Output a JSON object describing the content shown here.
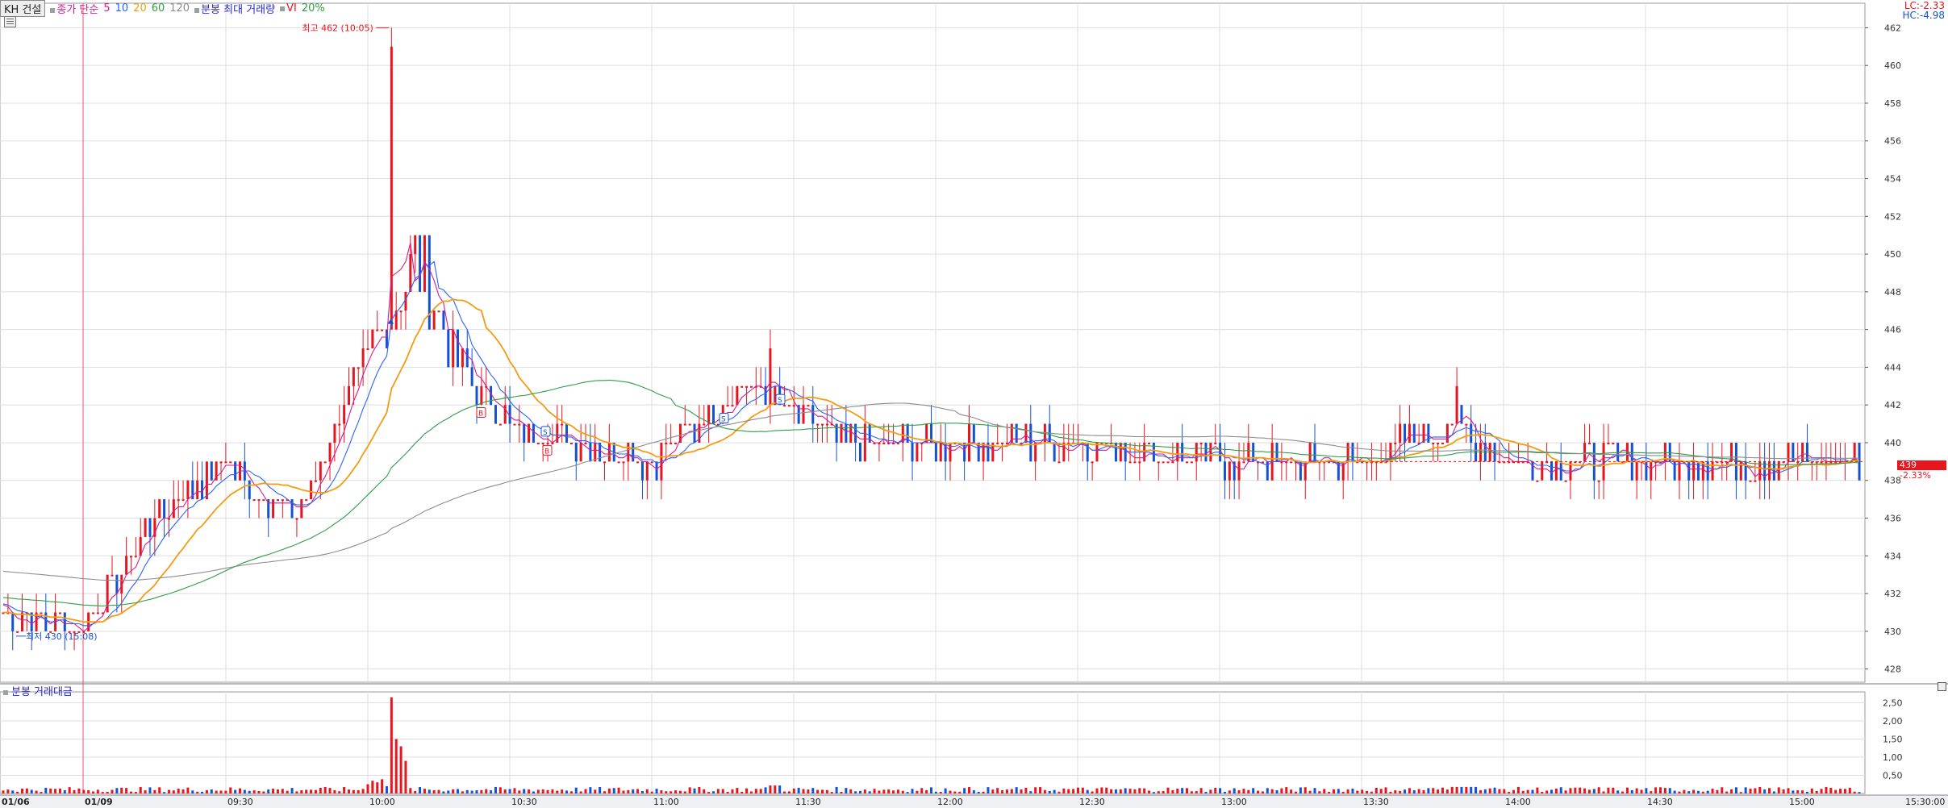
{
  "header": {
    "stock_name": "KH 건설",
    "ma_label": "종가 단순",
    "ma_periods": [
      {
        "period": "5",
        "color": "#d81b8c"
      },
      {
        "period": "10",
        "color": "#2962ff"
      },
      {
        "period": "20",
        "color": "#f39c12"
      },
      {
        "period": "60",
        "color": "#2e9e45"
      },
      {
        "period": "120",
        "color": "#8c8c8c"
      }
    ],
    "minute_max_volume": "분봉 최대 거래량",
    "vi_label": "VI",
    "vi_value": "20%"
  },
  "right_header": {
    "lc": "LC:-2.33",
    "hc": "HC:-4.98"
  },
  "colors": {
    "up": "#e8141e",
    "down": "#1451d6",
    "ma5": "#d81b8c",
    "ma10": "#2962ff",
    "ma20": "#f39c12",
    "ma60": "#2e9e45",
    "ma120": "#8c8c8c",
    "grid": "#dedede"
  },
  "price_panel": {
    "current_price": "439",
    "current_pct": "-2.33%",
    "high_annotation": "최고 462 (10:05)",
    "low_annotation": "최저 430 (15:08)"
  },
  "volume_panel": {
    "title": "분봉 거래대금"
  },
  "chart_data": [
    {
      "type": "candlestick",
      "title": "",
      "y_axis_ticks": [
        428,
        430,
        432,
        434,
        436,
        438,
        440,
        442,
        444,
        446,
        448,
        450,
        452,
        454,
        456,
        458,
        460,
        462
      ],
      "ylim": [
        427.3,
        463.3
      ],
      "x_tick_labels": [
        "01/06",
        "01/09",
        "09:30",
        "10:00",
        "10:30",
        "11:00",
        "11:30",
        "12:00",
        "12:30",
        "13:00",
        "13:30",
        "14:00",
        "14:30",
        "15:00",
        "15:30:00"
      ],
      "grid": true,
      "key_points": [
        {
          "time": "01/06 15:00",
          "close": 431
        },
        {
          "time": "01/06 15:08",
          "low": 430
        },
        {
          "time": "01/09 09:00",
          "close": 430
        },
        {
          "time": "09:15",
          "close": 436
        },
        {
          "time": "09:30",
          "close": 439
        },
        {
          "time": "09:45",
          "close": 436
        },
        {
          "time": "09:55",
          "close": 442
        },
        {
          "time": "10:05",
          "high": 462,
          "close": 447
        },
        {
          "time": "10:10",
          "close": 450
        },
        {
          "time": "10:20",
          "close": 444
        },
        {
          "time": "10:30",
          "close": 441
        },
        {
          "time": "10:45",
          "close": 440
        },
        {
          "time": "11:00",
          "close": 439
        },
        {
          "time": "11:20",
          "close": 443
        },
        {
          "time": "11:25",
          "high": 446
        },
        {
          "time": "11:40",
          "close": 440
        },
        {
          "time": "12:00",
          "close": 440
        },
        {
          "time": "12:30",
          "close": 440
        },
        {
          "time": "13:00",
          "close": 439
        },
        {
          "time": "13:30",
          "close": 439
        },
        {
          "time": "13:50",
          "high": 444,
          "close": 441
        },
        {
          "time": "14:00",
          "close": 439
        },
        {
          "time": "14:30",
          "close": 439
        },
        {
          "time": "15:00",
          "close": 439
        },
        {
          "time": "15:20",
          "close": 439
        }
      ],
      "series": [
        {
          "name": "5",
          "color": "#d81b8c"
        },
        {
          "name": "10",
          "color": "#2962ff"
        },
        {
          "name": "20",
          "color": "#f39c12"
        },
        {
          "name": "60",
          "color": "#2e9e45"
        },
        {
          "name": "120",
          "color": "#8c8c8c"
        }
      ],
      "signal_markers": [
        "B",
        "S",
        "B",
        "S",
        "S"
      ]
    },
    {
      "type": "bar",
      "title": "분봉 거래대금",
      "y_axis_ticks": [
        "0,50",
        "1,00",
        "1,50",
        "2,00",
        "2,50"
      ],
      "ylim": [
        0,
        2.8
      ],
      "peak": {
        "time": "10:05",
        "value": 2.65
      },
      "secondary_peaks": [
        {
          "time": "10:06",
          "value": 1.5
        },
        {
          "time": "10:07",
          "value": 1.3
        },
        {
          "time": "10:08",
          "value": 0.9
        }
      ],
      "typical_value": 0.1
    }
  ]
}
